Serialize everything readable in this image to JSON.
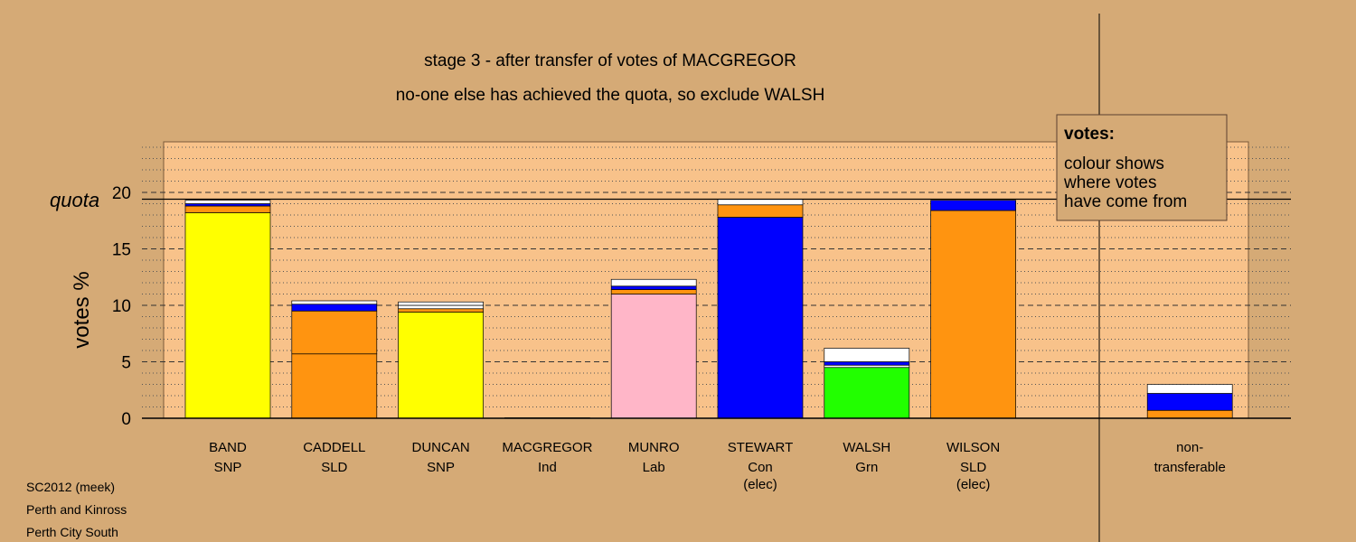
{
  "chart_data": {
    "type": "bar",
    "title": "stage 3 - after transfer of votes of MACGREGOR",
    "subtitle": "no-one else has achieved the quota, so exclude WALSH",
    "ylabel": "votes %",
    "ylim": [
      0,
      24.5
    ],
    "yticks": [
      "0",
      "5",
      "10",
      "15",
      "20"
    ],
    "quota_label": "quota",
    "quota": 19.4,
    "grid": "dashed at major ticks, dotted at minor ticks",
    "categories": [
      {
        "name": "BAND",
        "party": "SNP",
        "note": ""
      },
      {
        "name": "CADDELL",
        "party": "SLD",
        "note": ""
      },
      {
        "name": "DUNCAN",
        "party": "SNP",
        "note": ""
      },
      {
        "name": "MACGREGOR",
        "party": "Ind",
        "note": ""
      },
      {
        "name": "MUNRO",
        "party": "Lab",
        "note": ""
      },
      {
        "name": "STEWART",
        "party": "Con",
        "note": "(elec)"
      },
      {
        "name": "WALSH",
        "party": "Grn",
        "note": ""
      },
      {
        "name": "WILSON",
        "party": "SLD",
        "note": "(elec)"
      },
      {
        "name": "",
        "party": "",
        "note": ""
      },
      {
        "name": "non-",
        "party": "transferable",
        "note": ""
      }
    ],
    "stacks": [
      [
        {
          "v": 18.2,
          "c": "#FFFF00"
        },
        {
          "v": 0.6,
          "c": "#FF9410"
        },
        {
          "v": 0.2,
          "c": "#0000FF"
        },
        {
          "v": 0.3,
          "c": "#FFFFFF"
        }
      ],
      [
        {
          "v": 5.7,
          "c": "#FF9410"
        },
        {
          "v": 3.8,
          "c": "#FF9410"
        },
        {
          "v": 0.6,
          "c": "#0000FF"
        },
        {
          "v": 0.3,
          "c": "#FFFFFF"
        }
      ],
      [
        {
          "v": 9.4,
          "c": "#FFFF00"
        },
        {
          "v": 0.3,
          "c": "#FF9410"
        },
        {
          "v": 0.3,
          "c": "#FFFFFF"
        },
        {
          "v": 0.3,
          "c": "#FFFFFF"
        }
      ],
      [
        {
          "v": 0.04,
          "c": "#FF9410"
        }
      ],
      [
        {
          "v": 11.0,
          "c": "#FFB6C8"
        },
        {
          "v": 0.4,
          "c": "#FF9410"
        },
        {
          "v": 0.3,
          "c": "#0000FF"
        },
        {
          "v": 0.6,
          "c": "#FFFFFF"
        }
      ],
      [
        {
          "v": 17.8,
          "c": "#0000FF"
        },
        {
          "v": 1.1,
          "c": "#FF9410"
        },
        {
          "v": 0.5,
          "c": "#FFFFFF"
        }
      ],
      [
        {
          "v": 4.5,
          "c": "#22FF00"
        },
        {
          "v": 0.2,
          "c": "#FFFFFF"
        },
        {
          "v": 0.3,
          "c": "#0000FF"
        },
        {
          "v": 1.2,
          "c": "#FFFFFF"
        }
      ],
      [
        {
          "v": 18.4,
          "c": "#FF9410"
        },
        {
          "v": 0.9,
          "c": "#0000FF"
        }
      ],
      [],
      [
        {
          "v": 0.7,
          "c": "#FF9410"
        },
        {
          "v": 1.5,
          "c": "#0000FF"
        },
        {
          "v": 0.8,
          "c": "#FFFFFF"
        }
      ]
    ]
  },
  "legend": {
    "heading": "votes:",
    "lines": [
      "colour shows",
      "where votes",
      "have come from"
    ]
  },
  "footer": {
    "lines": [
      "SC2012 (meek)",
      "Perth and Kinross",
      "Perth City South"
    ]
  },
  "colors": {
    "background": "#D5AA76",
    "plot_panel": "#F8C28A",
    "legend_box": "#D5AA76"
  }
}
